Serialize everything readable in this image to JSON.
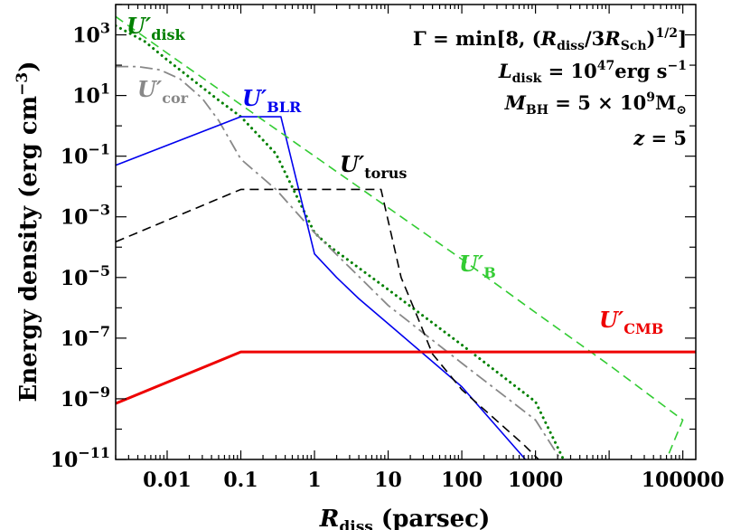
{
  "chart_data": {
    "type": "line",
    "xscale": "log",
    "yscale": "log",
    "xlim": [
      0.002,
      150000
    ],
    "ylim": [
      1e-11,
      10000.0
    ],
    "xlabel": "R_diss (parsec)",
    "ylabel": "Energy density (erg cm^-3)",
    "x_ticks": [
      {
        "value": 0.01,
        "label": "0.01"
      },
      {
        "value": 0.1,
        "label": "0.1"
      },
      {
        "value": 1,
        "label": "1"
      },
      {
        "value": 10,
        "label": "10"
      },
      {
        "value": 100,
        "label": "100"
      },
      {
        "value": 1000,
        "label": "1000"
      },
      {
        "value": 100000,
        "label": "100000"
      }
    ],
    "y_ticks": [
      {
        "exp": -11,
        "value": 1e-11
      },
      {
        "exp": -9,
        "value": 1e-09
      },
      {
        "exp": -7,
        "value": 1e-07
      },
      {
        "exp": -5,
        "value": 1e-05
      },
      {
        "exp": -3,
        "value": 0.001
      },
      {
        "exp": -1,
        "value": 0.1
      },
      {
        "exp": 1,
        "value": 10.0
      },
      {
        "exp": 3,
        "value": 1000.0
      }
    ],
    "annotations": {
      "gamma": "Γ = min[8, (R_diss/3R_Sch)^1/2]",
      "ldisk": "L_disk = 10^47 erg s^-1",
      "mbh": "M_BH = 5 × 10^9 M_⊙",
      "z": "z = 5"
    },
    "series": [
      {
        "name": "U'_disk",
        "label_main": "U′",
        "label_sub": "disk",
        "color": "#008000",
        "style": "dotted",
        "width": 3,
        "points": [
          [
            0.002,
            2000
          ],
          [
            0.005,
            600
          ],
          [
            0.01,
            150
          ],
          [
            0.05,
            7
          ],
          [
            0.1,
            2
          ],
          [
            0.3,
            0.12
          ],
          [
            1,
            0.0003
          ],
          [
            1.5,
            0.00012
          ],
          [
            10,
            4e-06
          ],
          [
            100,
            6e-08
          ],
          [
            1000,
            8e-10
          ],
          [
            2400,
            1e-11
          ]
        ]
      },
      {
        "name": "U'_cor",
        "label_main": "U′",
        "label_sub": "cor",
        "color": "#888888",
        "style": "dashdot",
        "width": 1.8,
        "points": [
          [
            0.002,
            90
          ],
          [
            0.004,
            90
          ],
          [
            0.008,
            70
          ],
          [
            0.015,
            35
          ],
          [
            0.03,
            8
          ],
          [
            0.05,
            1.5
          ],
          [
            0.1,
            0.08
          ],
          [
            0.3,
            0.008
          ],
          [
            1,
            0.0003
          ],
          [
            10,
            1.2e-06
          ],
          [
            100,
            1.5e-08
          ],
          [
            1000,
            2e-10
          ],
          [
            2200,
            1e-11
          ]
        ]
      },
      {
        "name": "U'_BLR",
        "label_main": "U′",
        "label_sub": "BLR",
        "color": "#0000ee",
        "style": "solid",
        "width": 1.6,
        "points": [
          [
            0.002,
            0.05
          ],
          [
            0.1,
            2
          ],
          [
            0.35,
            2
          ],
          [
            1,
            6e-05
          ],
          [
            2,
            1e-05
          ],
          [
            4,
            2e-06
          ],
          [
            10,
            3e-07
          ],
          [
            100,
            2.5e-09
          ],
          [
            730,
            1e-11
          ]
        ]
      },
      {
        "name": "U'_torus",
        "label_main": "U′",
        "label_sub": "torus",
        "color": "#000000",
        "style": "dashed",
        "width": 1.6,
        "points": [
          [
            0.002,
            0.00015
          ],
          [
            0.1,
            0.008
          ],
          [
            8,
            0.008
          ],
          [
            15,
            1e-05
          ],
          [
            25,
            5e-07
          ],
          [
            40,
            3e-08
          ],
          [
            100,
            2e-09
          ],
          [
            700,
            3e-11
          ],
          [
            1100,
            1e-11
          ]
        ]
      },
      {
        "name": "U'_B",
        "label_main": "U′",
        "label_sub": "B",
        "color": "#33cc33",
        "style": "dashed",
        "width": 1.6,
        "points": [
          [
            0.002,
            4000
          ],
          [
            0.01,
            250
          ],
          [
            0.1,
            5
          ],
          [
            1,
            0.1
          ],
          [
            10,
            0.002
          ],
          [
            100,
            4e-05
          ],
          [
            1000,
            7e-07
          ],
          [
            10000,
            1.3e-08
          ],
          [
            100000,
            2e-10
          ],
          [
            100000,
            2e-10
          ],
          [
            60000,
            1e-11
          ]
        ]
      },
      {
        "name": "U'_CMB",
        "label_main": "U′",
        "label_sub": "CMB",
        "color": "#ee0000",
        "style": "solid",
        "width": 3,
        "points": [
          [
            0.002,
            7e-10
          ],
          [
            0.1,
            3.5e-08
          ],
          [
            150000,
            3.5e-08
          ]
        ]
      }
    ]
  }
}
